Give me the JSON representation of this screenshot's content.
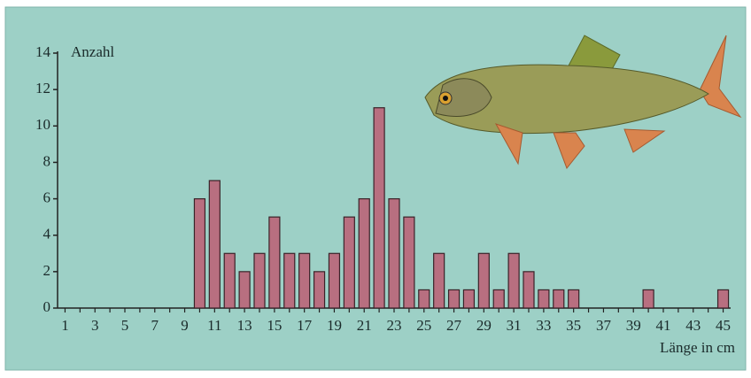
{
  "chart_data": {
    "type": "bar",
    "y_label": "Anzahl",
    "x_label": "Länge in cm",
    "categories": [
      "1",
      null,
      "3",
      null,
      "5",
      null,
      "7",
      null,
      "9",
      null,
      "11",
      null,
      "13",
      null,
      "15",
      null,
      "17",
      null,
      "19",
      null,
      "21",
      null,
      "23",
      null,
      "25",
      null,
      "27",
      null,
      "29",
      null,
      "31",
      null,
      "33",
      null,
      "35",
      null,
      "37",
      null,
      "39",
      null,
      "41",
      null,
      "43",
      null,
      "45"
    ],
    "values": [
      0,
      0,
      0,
      0,
      0,
      0,
      0,
      0,
      0,
      6,
      7,
      3,
      2,
      3,
      5,
      3,
      3,
      2,
      3,
      5,
      6,
      11,
      6,
      5,
      1,
      3,
      1,
      1,
      3,
      1,
      3,
      2,
      1,
      1,
      1,
      0,
      0,
      0,
      0,
      1,
      0,
      0,
      0,
      0,
      1
    ],
    "color": "#b86f80",
    "ylim": [
      0,
      14
    ],
    "yticks": [
      0,
      2,
      4,
      6,
      8,
      10,
      12,
      14
    ]
  }
}
